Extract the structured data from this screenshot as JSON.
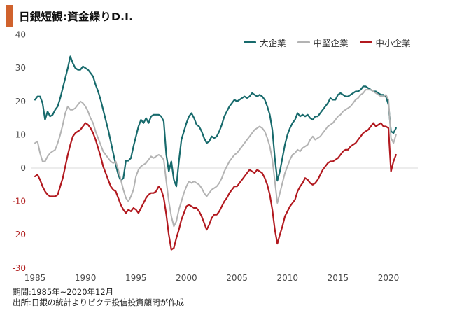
{
  "header": {
    "title": "日銀短観:資金繰りD.I.",
    "accent_color": "#d0622d"
  },
  "footer": {
    "line1": "期間:1985年~2020年12月",
    "line2": "出所:日銀の統計よりピクテ投信投資顧問が作成"
  },
  "chart_data": {
    "type": "line",
    "title": "日銀短観:資金繰りD.I.",
    "xlabel": "",
    "ylabel": "",
    "x_start": 1985,
    "x_step_years": 0.25,
    "x_end_label": "2020年12月",
    "x_ticks": [
      1985,
      1990,
      1995,
      2000,
      2005,
      2010,
      2015,
      2020
    ],
    "y_ticks": [
      40,
      30,
      20,
      10,
      0,
      -10,
      -20,
      -30
    ],
    "ylim": [
      -30,
      40
    ],
    "xlim": [
      1984.6,
      2022
    ],
    "grid": "zero-line-only",
    "legend_position": "top-center",
    "axis_colors": {
      "tick": "#4d4d4d",
      "negative_tick": "#b22222",
      "zero_gridline": "#d9d9d9"
    },
    "series": [
      {
        "name": "大企業",
        "color": "#176a6c",
        "width": 2.2,
        "values": [
          20.5,
          21.5,
          21.5,
          19.5,
          14.5,
          17,
          15.5,
          16,
          17.5,
          18.5,
          21,
          24,
          27,
          30,
          33.5,
          31.5,
          30,
          29.5,
          29.5,
          30.5,
          30,
          29.5,
          28.5,
          27.5,
          25,
          23,
          20.5,
          17.5,
          14.5,
          11.5,
          8,
          4.5,
          1,
          -2,
          -3.8,
          -3,
          2.2,
          2.2,
          3,
          6.5,
          9.5,
          12.5,
          14.5,
          13.5,
          15,
          13.5,
          15.5,
          16,
          16,
          16,
          15.5,
          14,
          4,
          -1,
          2,
          -3.5,
          -5.5,
          2,
          8.5,
          11,
          13.5,
          15.5,
          16.5,
          15,
          13,
          12.5,
          11,
          9,
          7.5,
          8,
          9.5,
          9,
          9.5,
          11,
          13,
          15.5,
          17,
          18.5,
          19.5,
          20.5,
          20,
          20.5,
          21,
          21.5,
          21,
          21.5,
          22.5,
          22,
          21.5,
          22,
          21.5,
          20.5,
          18.5,
          16,
          11.5,
          3,
          -3.8,
          -1,
          3,
          7,
          10,
          12,
          13.5,
          14.5,
          16.5,
          15.5,
          16,
          15.5,
          16,
          15,
          14.5,
          15.5,
          15.5,
          16.5,
          17.5,
          18.5,
          19.5,
          21,
          20.5,
          20.5,
          22,
          22.5,
          22,
          21.5,
          21.5,
          22,
          22.5,
          23,
          23,
          23.5,
          24.5,
          24.5,
          24,
          23.5,
          23,
          23,
          22.5,
          22,
          22,
          21.5,
          19,
          11,
          10.5,
          12
        ]
      },
      {
        "name": "中堅企業",
        "color": "#b3b3b3",
        "width": 2,
        "values": [
          7.5,
          8,
          4.5,
          2,
          2,
          3.5,
          4.5,
          5,
          5.5,
          7.5,
          10,
          13,
          16.5,
          18.5,
          17.5,
          17.5,
          18,
          19,
          20,
          19.5,
          18.5,
          17,
          15,
          13.5,
          11,
          9,
          7,
          5,
          4,
          3,
          2,
          1.5,
          2,
          -0.5,
          -3.5,
          -6.5,
          -9,
          -10,
          -8.5,
          -6.5,
          -2.5,
          -0.5,
          0.5,
          1,
          1.5,
          2.5,
          3.5,
          3,
          3.5,
          4,
          3.5,
          2.5,
          -4,
          -10,
          -14.5,
          -17.5,
          -16,
          -12.5,
          -10,
          -7.5,
          -5.5,
          -4,
          -4.5,
          -4,
          -4.5,
          -5,
          -6,
          -7.5,
          -8.5,
          -7.5,
          -6.5,
          -6,
          -5.5,
          -4.5,
          -3,
          -1,
          0.5,
          2,
          3,
          4,
          4.5,
          5.5,
          6.5,
          7.5,
          8.5,
          9.5,
          10.5,
          11.5,
          12,
          12.5,
          12,
          11,
          9,
          6.5,
          2.5,
          -4,
          -10.5,
          -7.5,
          -4.5,
          -1.5,
          0.5,
          2.5,
          4,
          4.5,
          5.5,
          5,
          6,
          6.5,
          7,
          8.5,
          9.5,
          8.5,
          9,
          9.5,
          10.5,
          11.5,
          12.5,
          13,
          13.5,
          14.5,
          15.5,
          16,
          17,
          17.5,
          18,
          18.5,
          19.5,
          20.5,
          21,
          22,
          22.5,
          23.5,
          23.5,
          23.5,
          23,
          22.5,
          22,
          21.5,
          21.5,
          22,
          20.5,
          9,
          7.5,
          10
        ]
      },
      {
        "name": "中小企業",
        "color": "#b2191f",
        "width": 2.2,
        "values": [
          -2.5,
          -2,
          -3.5,
          -5.5,
          -7,
          -8,
          -8.5,
          -8.5,
          -8.5,
          -8,
          -5.5,
          -3,
          0.5,
          4,
          7,
          9.5,
          10.5,
          11,
          11.5,
          12.5,
          13.5,
          13,
          12,
          10.5,
          8.5,
          6,
          3.5,
          0.5,
          -1.5,
          -3.5,
          -5.5,
          -6.5,
          -7,
          -9,
          -11,
          -12.5,
          -13.5,
          -12.5,
          -13,
          -12,
          -12.5,
          -13.5,
          -12,
          -10.5,
          -9,
          -8,
          -7.5,
          -7.5,
          -7,
          -5.5,
          -6.5,
          -9,
          -14,
          -20,
          -24.5,
          -24,
          -21,
          -18.5,
          -15.5,
          -13.5,
          -11.5,
          -11,
          -11.5,
          -12,
          -12,
          -13,
          -14.5,
          -16.5,
          -18.5,
          -17,
          -15,
          -14,
          -14,
          -13,
          -11.5,
          -10,
          -9,
          -7.5,
          -6.5,
          -5.5,
          -5.5,
          -4.5,
          -3.5,
          -2.5,
          -1.5,
          -0.5,
          -1,
          -1.5,
          -0.5,
          -1,
          -1.5,
          -3,
          -5,
          -8,
          -12.5,
          -18.5,
          -22.7,
          -20,
          -17.5,
          -14.5,
          -13,
          -11.5,
          -10.5,
          -9.5,
          -7,
          -5.5,
          -4.5,
          -3,
          -3.5,
          -4.5,
          -5,
          -4.5,
          -3.5,
          -2,
          -0.5,
          0.5,
          1.5,
          2,
          2,
          2.5,
          3,
          4,
          5,
          5.5,
          5.5,
          6.5,
          7,
          7.5,
          8.5,
          9.5,
          10.5,
          11,
          11.5,
          12.5,
          13.5,
          12.5,
          13,
          13.5,
          12.5,
          12.5,
          12,
          -1,
          2,
          4
        ]
      }
    ]
  }
}
